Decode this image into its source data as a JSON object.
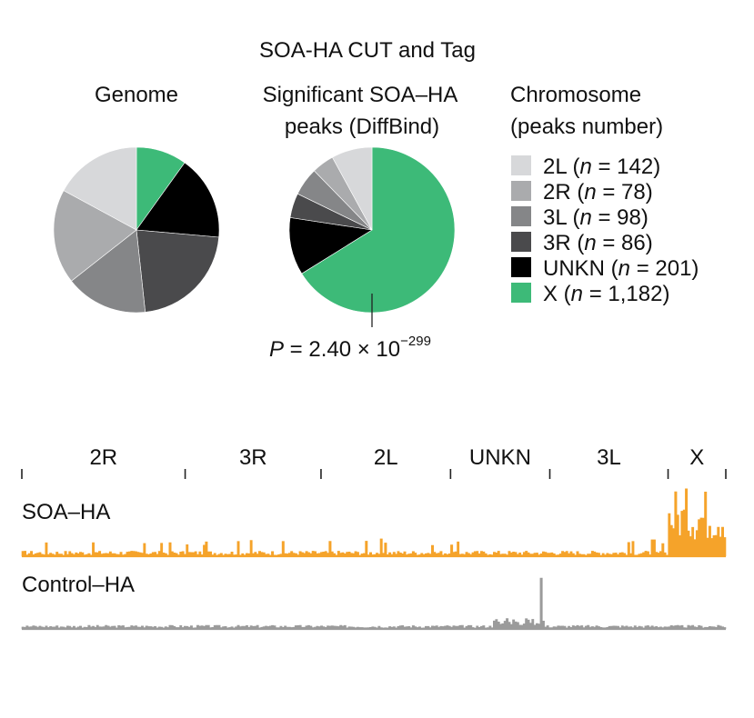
{
  "figure_title": "SOA-HA CUT and Tag",
  "colors": {
    "2L": "#d7d8da",
    "2R": "#aaabad",
    "3L": "#858688",
    "3R": "#4a4a4c",
    "UNKN": "#000000",
    "X": "#3dba78",
    "soa_track": "#f5a32a",
    "control_track": "#9b9b9b",
    "rule": "#222222"
  },
  "legend": {
    "title_line1": "Chromosome",
    "title_line2": "(peaks number)",
    "n_symbol": "n",
    "items": [
      {
        "key": "2L",
        "label": "2L",
        "open": " (",
        "n": "142"
      },
      {
        "key": "2R",
        "label": "2R",
        "open": " (",
        "n": "78"
      },
      {
        "key": "3L",
        "label": "3L",
        "open": " (",
        "n": "98"
      },
      {
        "key": "3R",
        "label": "3R",
        "open": " (",
        "n": "86"
      },
      {
        "key": "UNKN",
        "label": "UNKN",
        "open": " (",
        "n": "201"
      },
      {
        "key": "X",
        "label": "X",
        "open": " (",
        "n": "1,182"
      }
    ]
  },
  "pvalue": {
    "prefix": "P",
    "text": " = 2.40 × 10",
    "exponent": "−299"
  },
  "genome_track": {
    "chromosomes": [
      {
        "label": "2R",
        "start": 0.0,
        "end": 0.232
      },
      {
        "label": "3R",
        "start": 0.232,
        "end": 0.425
      },
      {
        "label": "2L",
        "start": 0.425,
        "end": 0.609
      },
      {
        "label": "UNKN",
        "start": 0.609,
        "end": 0.75
      },
      {
        "label": "3L",
        "start": 0.75,
        "end": 0.918
      },
      {
        "label": "X",
        "start": 0.918,
        "end": 1.0
      }
    ],
    "tracks": [
      {
        "label": "SOA–HA",
        "color_key": "soa_track"
      },
      {
        "label": "Control–HA",
        "color_key": "control_track"
      }
    ]
  },
  "chart_data": [
    {
      "type": "pie",
      "title": "Genome",
      "slices": [
        {
          "label": "X",
          "value": 9.9
        },
        {
          "label": "UNKN",
          "value": 16.5
        },
        {
          "label": "3R",
          "value": 21.9
        },
        {
          "label": "3L",
          "value": 16.1
        },
        {
          "label": "2R",
          "value": 18.5
        },
        {
          "label": "2L",
          "value": 17.1
        }
      ]
    },
    {
      "type": "pie",
      "title_line1": "Significant SOA–HA",
      "title_line2": "peaks (DiffBind)",
      "slices": [
        {
          "label": "X",
          "value": 1182
        },
        {
          "label": "UNKN",
          "value": 201
        },
        {
          "label": "3R",
          "value": 86
        },
        {
          "label": "3L",
          "value": 98
        },
        {
          "label": "2R",
          "value": 78
        },
        {
          "label": "2L",
          "value": 142
        }
      ]
    }
  ]
}
